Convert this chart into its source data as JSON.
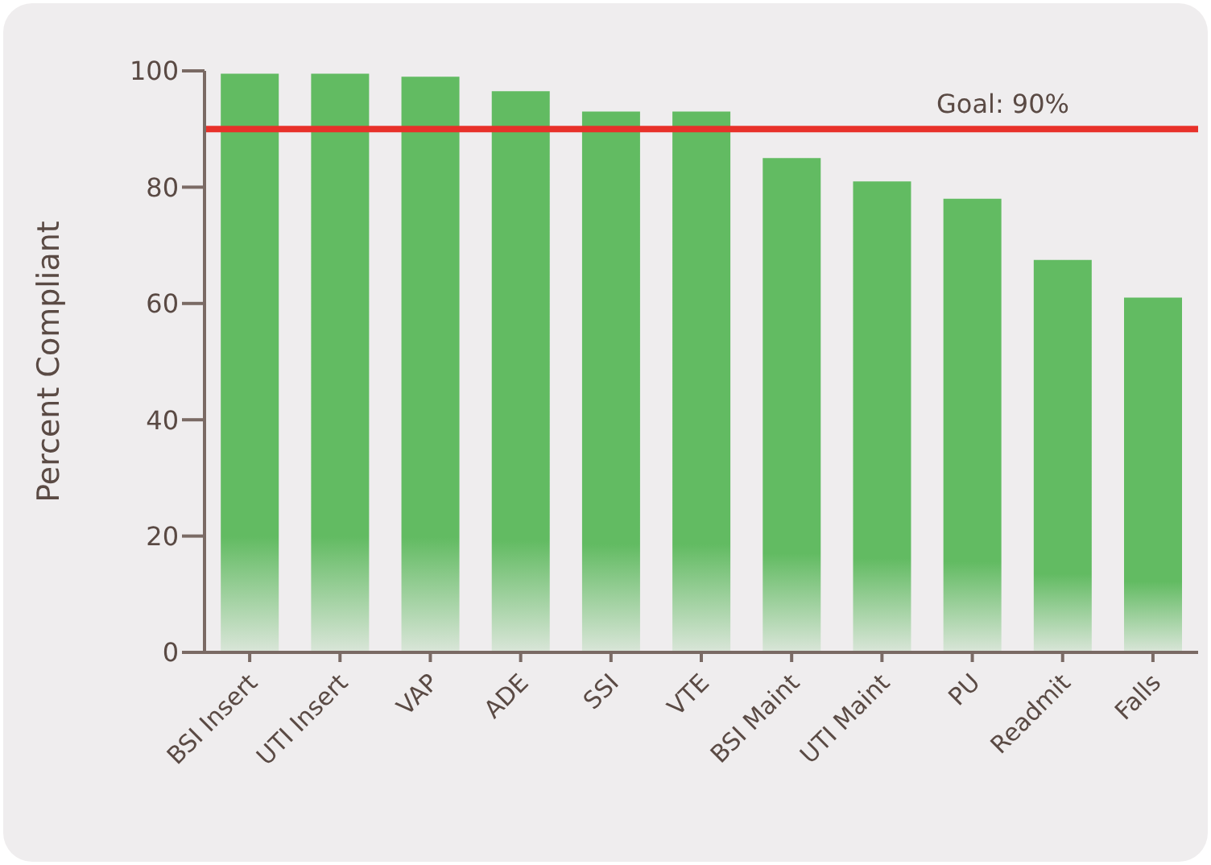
{
  "chart_data": {
    "type": "bar",
    "ylabel": "Percent Compliant",
    "categories": [
      "BSI Insert",
      "UTI Insert",
      "VAP",
      "ADE",
      "SSI",
      "VTE",
      "BSI Maint",
      "UTI Maint",
      "PU",
      "Readmit",
      "Falls"
    ],
    "values": [
      99.5,
      99.5,
      99,
      96.5,
      93,
      93,
      85,
      81,
      78,
      67.5,
      61
    ],
    "color": "#62bb62",
    "ylim": [
      0,
      100
    ],
    "yticks": [
      0,
      20,
      40,
      60,
      80,
      100
    ],
    "grid": false,
    "legend": false,
    "ref_lines": [
      {
        "axis": "y",
        "value": 90,
        "label": "Goal: 90%",
        "color": "#e8312a"
      }
    ]
  }
}
